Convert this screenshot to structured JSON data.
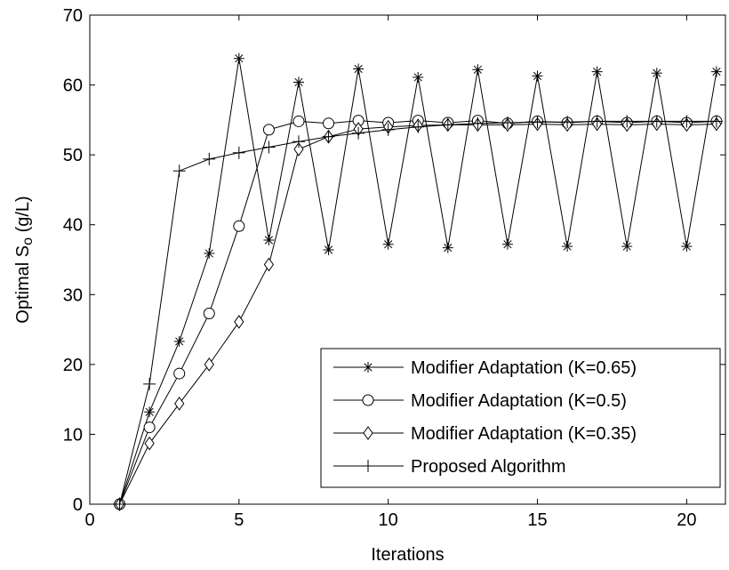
{
  "chart_data": {
    "type": "line",
    "title": "",
    "xlabel": "Iterations",
    "ylabel": {
      "base": "Optimal S",
      "subscript": "o",
      "unit": " (g/L)"
    },
    "xlim": [
      0,
      21.3
    ],
    "ylim": [
      0,
      70
    ],
    "xticks": [
      0,
      5,
      10,
      15,
      20
    ],
    "yticks": [
      0,
      10,
      20,
      30,
      40,
      50,
      60,
      70
    ],
    "grid": false,
    "legend_position": "bottom-right",
    "colors": {
      "line": "#000000",
      "background": "#ffffff"
    },
    "series": [
      {
        "name": "Modifier Adaptation (K=0.65)",
        "marker": "asterisk",
        "x": [
          1,
          2,
          3,
          4,
          5,
          6,
          7,
          8,
          9,
          10,
          11,
          12,
          13,
          14,
          15,
          16,
          17,
          18,
          19,
          20,
          21
        ],
        "y": [
          0,
          13.2,
          23.3,
          35.9,
          63.8,
          37.8,
          60.4,
          36.4,
          62.3,
          37.2,
          61.1,
          36.7,
          62.2,
          37.2,
          61.3,
          36.9,
          61.9,
          36.9,
          61.7,
          36.9,
          61.9
        ]
      },
      {
        "name": "Modifier Adaptation (K=0.5)",
        "marker": "circle",
        "x": [
          1,
          2,
          3,
          4,
          5,
          6,
          7,
          8,
          9,
          10,
          11,
          12,
          13,
          14,
          15,
          16,
          17,
          18,
          19,
          20,
          21
        ],
        "y": [
          0,
          11,
          18.7,
          27.3,
          39.8,
          53.6,
          54.8,
          54.5,
          54.9,
          54.6,
          54.9,
          54.6,
          54.9,
          54.5,
          54.8,
          54.6,
          54.8,
          54.6,
          54.8,
          54.6,
          54.8
        ]
      },
      {
        "name": "Modifier Adaptation (K=0.35)",
        "marker": "diamond",
        "x": [
          1,
          2,
          3,
          4,
          5,
          6,
          7,
          8,
          9,
          10,
          11,
          12,
          13,
          14,
          15,
          16,
          17,
          18,
          19,
          20,
          21
        ],
        "y": [
          0,
          8.7,
          14.4,
          20,
          26.1,
          34.3,
          50.8,
          52.6,
          53.7,
          54,
          54.2,
          54.3,
          54.3,
          54.3,
          54.4,
          54.3,
          54.4,
          54.3,
          54.4,
          54.3,
          54.4
        ]
      },
      {
        "name": "Proposed Algorithm",
        "marker": "plus",
        "x": [
          1,
          2,
          3,
          4,
          5,
          6,
          7,
          8,
          9,
          10,
          11,
          12,
          13,
          14,
          15,
          16,
          17,
          18,
          19,
          20,
          21
        ],
        "y": [
          0,
          17.2,
          47.7,
          49.4,
          50.3,
          51.1,
          51.9,
          52.6,
          53.1,
          53.6,
          54,
          54.3,
          54.5,
          54.6,
          54.7,
          54.7,
          54.8,
          54.8,
          54.8,
          54.8,
          54.8
        ]
      }
    ]
  }
}
